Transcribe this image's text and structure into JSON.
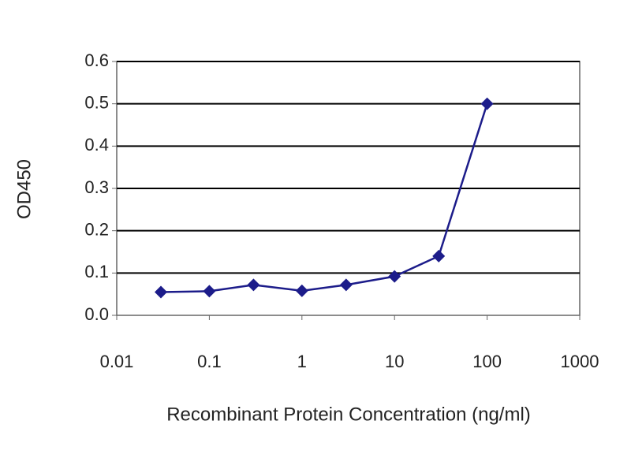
{
  "chart_data": {
    "type": "line",
    "x_label": "Recombinant Protein Concentration (ng/ml)",
    "y_label": "OD450",
    "x": [
      0.03,
      0.1,
      0.3,
      1,
      3,
      10,
      30,
      100
    ],
    "series": [
      {
        "color": "#1c1c8a",
        "values": [
          0.055,
          0.057,
          0.072,
          0.058,
          0.072,
          0.092,
          0.14,
          0.5
        ]
      }
    ],
    "xscale": "log",
    "xlim": [
      0.01,
      1000
    ],
    "xticks": [
      0.01,
      0.1,
      1,
      10,
      100,
      1000
    ],
    "ylim": [
      0,
      0.6
    ],
    "yticks": [
      {
        "value": 0,
        "label": "0.0"
      },
      0.1,
      0.2,
      0.3,
      0.4,
      0.5,
      0.6
    ],
    "grid": true
  }
}
